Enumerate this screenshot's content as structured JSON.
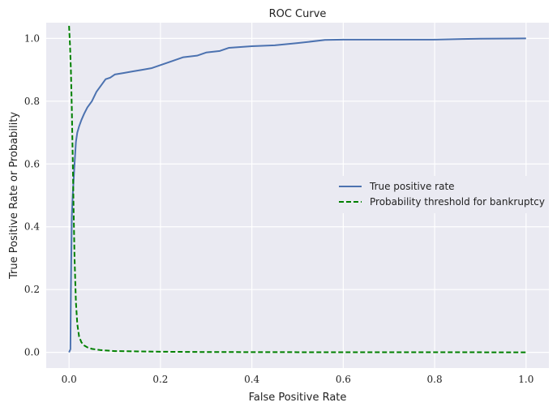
{
  "chart_data": {
    "type": "line",
    "title": "ROC Curve",
    "xlabel": "False Positive Rate",
    "ylabel": "True Positive Rate or Probability",
    "xlim": [
      -0.05,
      1.05
    ],
    "ylim": [
      -0.05,
      1.05
    ],
    "xticks": [
      0.0,
      0.2,
      0.4,
      0.6,
      0.8,
      1.0
    ],
    "xtick_labels": [
      "0.0",
      "0.2",
      "0.4",
      "0.6",
      "0.8",
      "1.0"
    ],
    "yticks": [
      0.0,
      0.2,
      0.4,
      0.6,
      0.8,
      1.0
    ],
    "ytick_labels": [
      "0.0",
      "0.2",
      "0.4",
      "0.6",
      "0.8",
      "1.0"
    ],
    "grid": true,
    "legend_position": "center-right",
    "series": [
      {
        "name": "True positive rate",
        "color": "#4c72b0",
        "style": "solid",
        "x": [
          0.0,
          0.003,
          0.004,
          0.006,
          0.008,
          0.01,
          0.012,
          0.015,
          0.018,
          0.022,
          0.027,
          0.033,
          0.04,
          0.05,
          0.06,
          0.07,
          0.08,
          0.09,
          0.1,
          0.12,
          0.14,
          0.16,
          0.18,
          0.2,
          0.22,
          0.25,
          0.28,
          0.3,
          0.33,
          0.35,
          0.4,
          0.45,
          0.5,
          0.56,
          0.6,
          0.7,
          0.8,
          0.86,
          0.9,
          1.0
        ],
        "y": [
          0.0,
          0.01,
          0.2,
          0.43,
          0.5,
          0.55,
          0.6,
          0.67,
          0.7,
          0.72,
          0.74,
          0.76,
          0.78,
          0.8,
          0.83,
          0.85,
          0.87,
          0.875,
          0.885,
          0.89,
          0.895,
          0.9,
          0.905,
          0.915,
          0.925,
          0.94,
          0.945,
          0.955,
          0.96,
          0.97,
          0.975,
          0.978,
          0.985,
          0.995,
          0.996,
          0.996,
          0.996,
          0.998,
          0.999,
          1.0
        ]
      },
      {
        "name": "Probability threshold for bankruptcy",
        "color": "#008000",
        "style": "dashed",
        "x": [
          0.0,
          0.002,
          0.004,
          0.006,
          0.008,
          0.01,
          0.012,
          0.015,
          0.018,
          0.022,
          0.027,
          0.033,
          0.04,
          0.05,
          0.07,
          0.1,
          0.15,
          0.2,
          0.3,
          0.5,
          0.7,
          0.9,
          1.0
        ],
        "y": [
          1.04,
          0.98,
          0.9,
          0.78,
          0.62,
          0.45,
          0.3,
          0.16,
          0.09,
          0.05,
          0.032,
          0.022,
          0.016,
          0.011,
          0.007,
          0.004,
          0.003,
          0.002,
          0.001,
          0.0005,
          0.0003,
          0.0002,
          0.0001
        ]
      }
    ]
  }
}
